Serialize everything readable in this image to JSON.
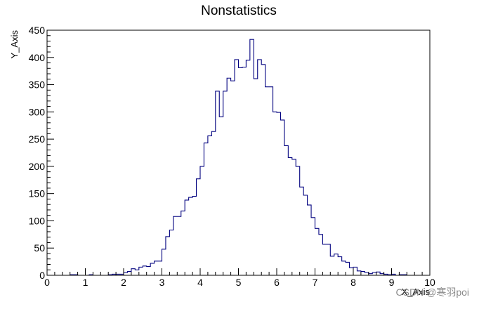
{
  "chart_data": {
    "type": "histogram",
    "title": "Nonstatistics",
    "xlabel": "X_Axis",
    "ylabel": "Y_Axis",
    "xlim": [
      0,
      10
    ],
    "ylim": [
      0,
      450
    ],
    "bin_width": 0.1,
    "bin_start": 0.0,
    "line_color": "#00007f",
    "grid": false,
    "x_ticks": [
      "0",
      "1",
      "2",
      "3",
      "4",
      "5",
      "6",
      "7",
      "8",
      "9",
      "10"
    ],
    "y_ticks": [
      "0",
      "50",
      "100",
      "150",
      "200",
      "250",
      "300",
      "350",
      "400",
      "450"
    ],
    "counts": [
      0,
      0,
      0,
      0,
      0,
      0,
      1,
      1,
      0,
      0,
      0,
      1,
      0,
      0,
      0,
      0,
      1,
      2,
      2,
      2,
      5,
      7,
      12,
      10,
      15,
      17,
      16,
      22,
      26,
      26,
      48,
      71,
      83,
      108,
      108,
      118,
      138,
      143,
      145,
      177,
      200,
      243,
      256,
      264,
      338,
      291,
      338,
      362,
      357,
      396,
      381,
      382,
      395,
      433,
      361,
      396,
      387,
      346,
      346,
      300,
      299,
      285,
      238,
      216,
      213,
      200,
      162,
      147,
      129,
      106,
      86,
      75,
      57,
      57,
      35,
      39,
      34,
      26,
      24,
      14,
      15,
      8,
      7,
      5,
      3,
      5,
      6,
      3,
      2,
      1,
      2,
      0,
      1,
      1,
      0,
      0,
      0,
      0,
      0,
      0
    ]
  },
  "watermark": "CSDN @寒羽poi"
}
